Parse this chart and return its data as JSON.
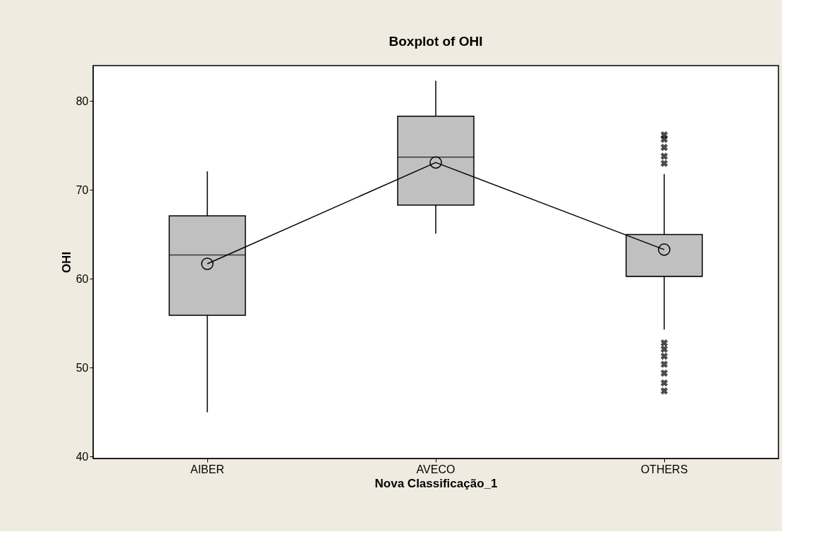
{
  "chart_data": {
    "type": "box",
    "title": "Boxplot of OHI",
    "xlabel": "Nova Classificação_1",
    "ylabel": "OHI",
    "categories": [
      "AIBER",
      "AVECO",
      "OTHERS"
    ],
    "ylim": [
      39.8,
      84
    ],
    "yticks": [
      40,
      50,
      60,
      70,
      80
    ],
    "grid": false,
    "boxes": [
      {
        "low": 45.0,
        "q1": 55.9,
        "median": 62.7,
        "q3": 67.1,
        "high": 72.1
      },
      {
        "low": 65.1,
        "q1": 68.3,
        "median": 73.7,
        "q3": 78.3,
        "high": 82.3
      },
      {
        "low": 54.3,
        "q1": 60.3,
        "median": 60.3,
        "q3": 65.0,
        "high": 71.8,
        "outliers": [
          76.2,
          75.7,
          74.8,
          73.8,
          73.0,
          52.8,
          52.1,
          51.3,
          50.4,
          49.4,
          48.3,
          47.4
        ]
      }
    ],
    "series": [
      {
        "type": "line",
        "color": "#000000",
        "marker": "circle",
        "values": [
          61.7,
          73.1,
          63.3
        ]
      }
    ]
  }
}
